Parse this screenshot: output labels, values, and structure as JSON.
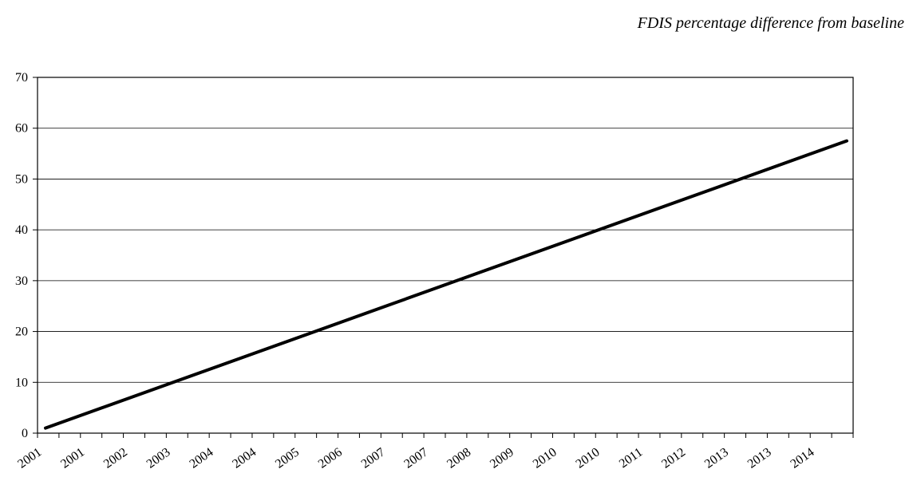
{
  "chart_data": {
    "type": "line",
    "title": "FDIS percentage difference from baseline",
    "xlabel": "",
    "ylabel": "",
    "ylim": [
      0,
      70
    ],
    "y_ticks": [
      0,
      10,
      20,
      30,
      40,
      50,
      60,
      70
    ],
    "x_tick_labels": [
      "2001",
      "2001",
      "2002",
      "2003",
      "2004",
      "2004",
      "2005",
      "2006",
      "2007",
      "2007",
      "2008",
      "2009",
      "2010",
      "2010",
      "2011",
      "2012",
      "2013",
      "2013",
      "2014"
    ],
    "grid": true,
    "legend": "none",
    "x_start": 2001.25,
    "x_end": 2014.75,
    "series": [
      {
        "x": [
          2001.25,
          2014.75
        ],
        "values": [
          1.0,
          57.5
        ],
        "color": "#000000"
      }
    ]
  }
}
